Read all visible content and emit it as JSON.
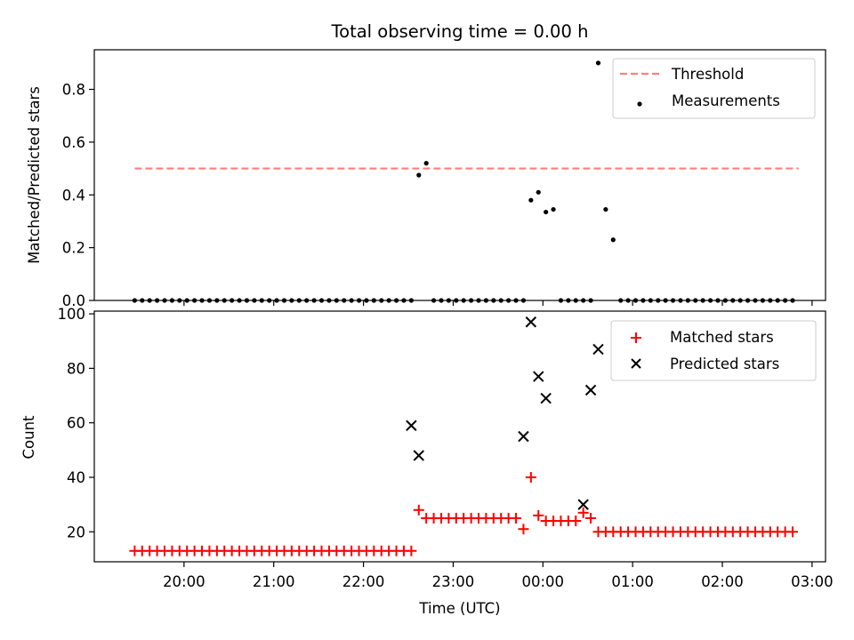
{
  "chart_data": [
    {
      "type": "scatter",
      "title": "Total observing time = 0.00 h",
      "ylabel": "Matched/Predicted stars",
      "xlabel": "",
      "ylim": [
        0,
        0.95
      ],
      "yticks": [
        "0.0",
        "0.2",
        "0.4",
        "0.6",
        "0.8"
      ],
      "ytick_values": [
        0,
        0.2,
        0.4,
        0.6,
        0.8
      ],
      "legend_position": "top-right",
      "series": [
        {
          "name": "Threshold",
          "kind": "dashed-line",
          "color": "#ff7f7f",
          "x": [
            "19:27",
            "02:51"
          ],
          "y": [
            0.5,
            0.5
          ]
        },
        {
          "name": "Measurements",
          "kind": "points",
          "color": "#000000",
          "x": [
            "19:27",
            "19:32",
            "19:37",
            "19:42",
            "19:47",
            "19:52",
            "19:57",
            "20:02",
            "20:07",
            "20:12",
            "20:17",
            "20:22",
            "20:27",
            "20:32",
            "20:37",
            "20:42",
            "20:47",
            "20:52",
            "20:57",
            "21:02",
            "21:07",
            "21:12",
            "21:17",
            "21:22",
            "21:27",
            "21:32",
            "21:37",
            "21:42",
            "21:47",
            "21:52",
            "21:57",
            "22:02",
            "22:07",
            "22:12",
            "22:17",
            "22:22",
            "22:27",
            "22:32",
            "22:37",
            "22:42",
            "22:47",
            "22:52",
            "22:57",
            "23:02",
            "23:07",
            "23:12",
            "23:17",
            "23:22",
            "23:27",
            "23:32",
            "23:37",
            "23:42",
            "23:47",
            "23:52",
            "23:57",
            "00:02",
            "00:07",
            "00:12",
            "00:17",
            "00:22",
            "00:27",
            "00:32",
            "00:37",
            "00:42",
            "00:47",
            "00:52",
            "00:57",
            "01:02",
            "01:07",
            "01:12",
            "01:17",
            "01:22",
            "01:27",
            "01:32",
            "01:37",
            "01:42",
            "01:47",
            "01:52",
            "01:57",
            "02:02",
            "02:07",
            "02:12",
            "02:17",
            "02:22",
            "02:27",
            "02:32",
            "02:37",
            "02:42",
            "02:47"
          ],
          "y": [
            0,
            0,
            0,
            0,
            0,
            0,
            0,
            0,
            0,
            0,
            0,
            0,
            0,
            0,
            0,
            0,
            0,
            0,
            0,
            0,
            0,
            0,
            0,
            0,
            0,
            0,
            0,
            0,
            0,
            0,
            0,
            0,
            0,
            0,
            0,
            0,
            0,
            0,
            0.475,
            0.52,
            0,
            0,
            0,
            0,
            0,
            0,
            0,
            0,
            0,
            0,
            0,
            0,
            0,
            0.38,
            0.41,
            0.335,
            0.345,
            0,
            0,
            0,
            0,
            0,
            0.9,
            0.345,
            0.23,
            0,
            0,
            0,
            0,
            0,
            0,
            0,
            0,
            0,
            0,
            0,
            0,
            0,
            0,
            0,
            0,
            0,
            0,
            0,
            0,
            0,
            0,
            0,
            0
          ]
        }
      ]
    },
    {
      "type": "scatter",
      "title": "",
      "xlabel": "Time (UTC)",
      "ylabel": "Count",
      "ylim": [
        9,
        101
      ],
      "yticks": [
        "20",
        "40",
        "60",
        "80",
        "100"
      ],
      "ytick_values": [
        20,
        40,
        60,
        80,
        100
      ],
      "x_tick_labels": [
        "20:00",
        "21:00",
        "22:00",
        "23:00",
        "00:00",
        "01:00",
        "02:00",
        "03:00"
      ],
      "xlim": [
        "19:00",
        "03:09"
      ],
      "legend_position": "top-right",
      "series": [
        {
          "name": "Matched stars",
          "kind": "plus",
          "color": "#ff0000",
          "x": [
            "19:27",
            "19:32",
            "19:37",
            "19:42",
            "19:47",
            "19:52",
            "19:57",
            "20:02",
            "20:07",
            "20:12",
            "20:17",
            "20:22",
            "20:27",
            "20:32",
            "20:37",
            "20:42",
            "20:47",
            "20:52",
            "20:57",
            "21:02",
            "21:07",
            "21:12",
            "21:17",
            "21:22",
            "21:27",
            "21:32",
            "21:37",
            "21:42",
            "21:47",
            "21:52",
            "21:57",
            "22:02",
            "22:07",
            "22:12",
            "22:17",
            "22:22",
            "22:27",
            "22:32",
            "22:37",
            "22:42",
            "22:47",
            "22:52",
            "22:57",
            "23:02",
            "23:07",
            "23:12",
            "23:17",
            "23:22",
            "23:27",
            "23:32",
            "23:37",
            "23:42",
            "23:47",
            "23:52",
            "23:57",
            "00:02",
            "00:07",
            "00:12",
            "00:17",
            "00:22",
            "00:27",
            "00:32",
            "00:37",
            "00:42",
            "00:47",
            "00:52",
            "00:57",
            "01:02",
            "01:07",
            "01:12",
            "01:17",
            "01:22",
            "01:27",
            "01:32",
            "01:37",
            "01:42",
            "01:47",
            "01:52",
            "01:57",
            "02:02",
            "02:07",
            "02:12",
            "02:17",
            "02:22",
            "02:27",
            "02:32",
            "02:37",
            "02:42",
            "02:47"
          ],
          "y": [
            13,
            13,
            13,
            13,
            13,
            13,
            13,
            13,
            13,
            13,
            13,
            13,
            13,
            13,
            13,
            13,
            13,
            13,
            13,
            13,
            13,
            13,
            13,
            13,
            13,
            13,
            13,
            13,
            13,
            13,
            13,
            13,
            13,
            13,
            13,
            13,
            13,
            13,
            28,
            25,
            25,
            25,
            25,
            25,
            25,
            25,
            25,
            25,
            25,
            25,
            25,
            25,
            21,
            40,
            26,
            24,
            24,
            24,
            24,
            24,
            27,
            25,
            20,
            20,
            20,
            20,
            20,
            20,
            20,
            20,
            20,
            20,
            20,
            20,
            20,
            20,
            20,
            20,
            20,
            20,
            20,
            20,
            20,
            20,
            20,
            20,
            20,
            20,
            20
          ]
        },
        {
          "name": "Predicted stars",
          "kind": "x",
          "color": "#000000",
          "x": [
            "22:32",
            "22:37",
            "23:47",
            "23:52",
            "23:57",
            "00:02",
            "00:27",
            "00:32",
            "00:37"
          ],
          "y": [
            59,
            48,
            55,
            97,
            77,
            69,
            30,
            72,
            87
          ]
        }
      ]
    }
  ]
}
